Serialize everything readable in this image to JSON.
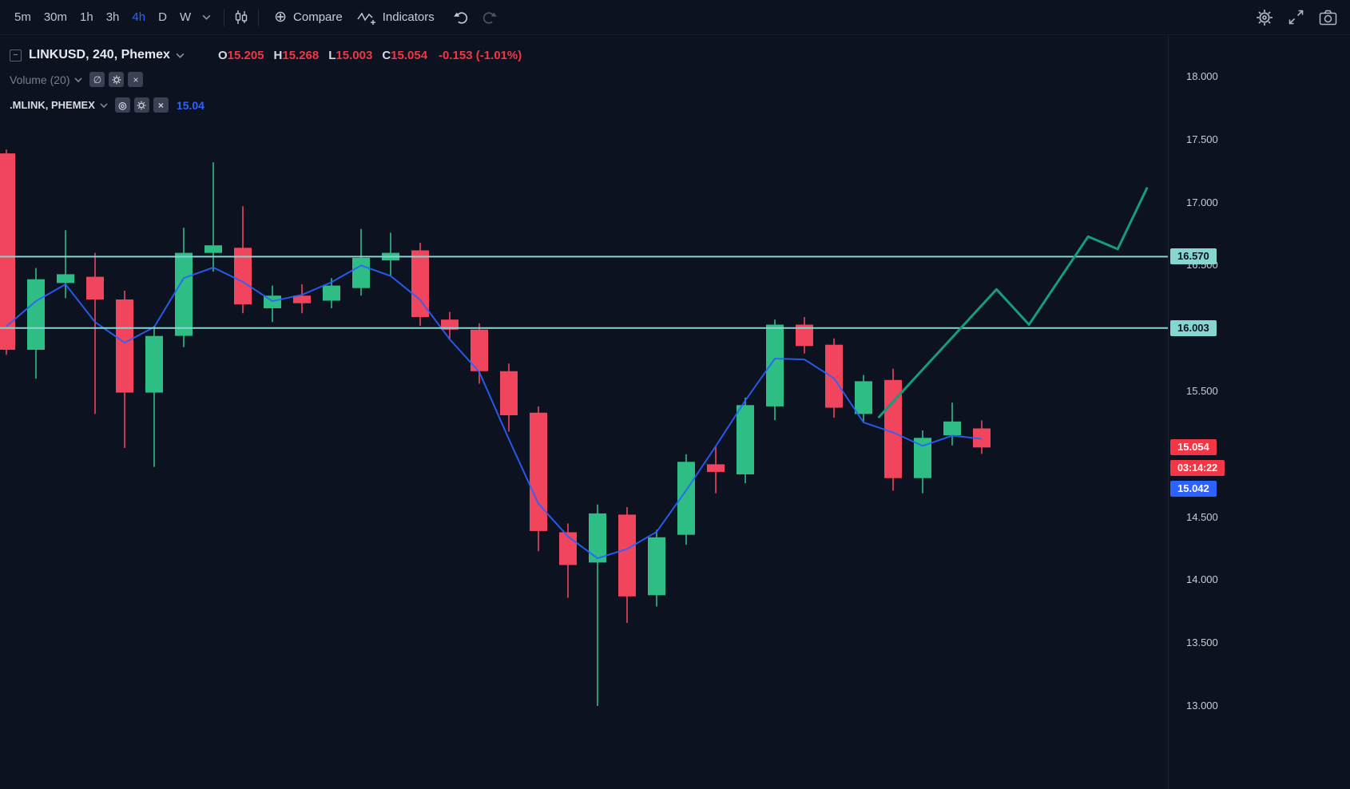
{
  "colors": {
    "bg": "#0d1220",
    "text": "#d1d4dc",
    "muted": "#787f90",
    "accent_blue": "#2d62ff",
    "red": "#f23645",
    "candle_up": "#2ebd85",
    "candle_down": "#f0455c",
    "level_teal": "#85d6d0",
    "drawn_line": "#169b7e",
    "index_line": "#2962ff"
  },
  "icons": {
    "collapse": "−",
    "circle_plus": "⊕",
    "hidden_eye": "∅",
    "eye": "◎",
    "close": "×"
  },
  "toolbar": {
    "timeframes": [
      {
        "label": "5m",
        "active": false
      },
      {
        "label": "30m",
        "active": false
      },
      {
        "label": "1h",
        "active": false
      },
      {
        "label": "3h",
        "active": false
      },
      {
        "label": "4h",
        "active": true
      },
      {
        "label": "D",
        "active": false
      },
      {
        "label": "W",
        "active": false
      }
    ],
    "compare_label": "Compare",
    "indicators_label": "Indicators"
  },
  "legend": {
    "symbol_title": "LINKUSD, 240, Phemex",
    "ohlc": {
      "open_label": "O",
      "open": "15.205",
      "high_label": "H",
      "high": "15.268",
      "low_label": "L",
      "low": "15.003",
      "close_label": "C",
      "close": "15.054",
      "change": "-0.153 (-1.01%)"
    },
    "volume_row": {
      "title": "Volume (20)"
    },
    "index_row": {
      "title": ".MLINK, PHEMEX",
      "value": "15.04"
    }
  },
  "price_axis": {
    "ticks": [
      "18.000",
      "17.500",
      "17.000",
      "16.500",
      "15.500",
      "14.500",
      "14.000",
      "13.500",
      "13.000"
    ],
    "levels": [
      "16.570",
      "16.003"
    ],
    "last_price": "15.054",
    "countdown": "03:14:22",
    "index_price": "15.042"
  },
  "chart_data": {
    "type": "candlestick",
    "symbol": "LINKUSD",
    "interval": "240",
    "exchange": "Phemex",
    "ylim": [
      13.0,
      18.0
    ],
    "grid": false,
    "levels": [
      16.57,
      16.003
    ],
    "last_bar": {
      "o": 15.205,
      "h": 15.268,
      "l": 15.003,
      "c": 15.054,
      "change": -0.153,
      "change_pct": -1.01
    },
    "index_value": 15.042,
    "candles": [
      {
        "o": 17.39,
        "h": 17.42,
        "l": 15.79,
        "c": 15.83
      },
      {
        "o": 15.83,
        "h": 16.48,
        "l": 15.6,
        "c": 16.39
      },
      {
        "o": 16.36,
        "h": 16.78,
        "l": 16.24,
        "c": 16.43
      },
      {
        "o": 16.41,
        "h": 16.6,
        "l": 15.32,
        "c": 16.23
      },
      {
        "o": 16.23,
        "h": 16.3,
        "l": 15.05,
        "c": 15.49
      },
      {
        "o": 15.49,
        "h": 16.02,
        "l": 14.9,
        "c": 15.94
      },
      {
        "o": 15.94,
        "h": 16.8,
        "l": 15.85,
        "c": 16.6
      },
      {
        "o": 16.6,
        "h": 17.32,
        "l": 16.45,
        "c": 16.66
      },
      {
        "o": 16.64,
        "h": 16.97,
        "l": 16.12,
        "c": 16.19
      },
      {
        "o": 16.16,
        "h": 16.34,
        "l": 16.05,
        "c": 16.26
      },
      {
        "o": 16.26,
        "h": 16.35,
        "l": 16.12,
        "c": 16.2
      },
      {
        "o": 16.22,
        "h": 16.4,
        "l": 16.16,
        "c": 16.34
      },
      {
        "o": 16.32,
        "h": 16.79,
        "l": 16.26,
        "c": 16.56
      },
      {
        "o": 16.54,
        "h": 16.76,
        "l": 16.42,
        "c": 16.6
      },
      {
        "o": 16.62,
        "h": 16.68,
        "l": 16.02,
        "c": 16.09
      },
      {
        "o": 16.07,
        "h": 16.13,
        "l": 15.92,
        "c": 15.99
      },
      {
        "o": 15.99,
        "h": 16.04,
        "l": 15.56,
        "c": 15.66
      },
      {
        "o": 15.66,
        "h": 15.72,
        "l": 15.18,
        "c": 15.31
      },
      {
        "o": 15.33,
        "h": 15.38,
        "l": 14.23,
        "c": 14.39
      },
      {
        "o": 14.38,
        "h": 14.45,
        "l": 13.86,
        "c": 14.12
      },
      {
        "o": 14.14,
        "h": 14.6,
        "l": 13.0,
        "c": 14.53
      },
      {
        "o": 14.52,
        "h": 14.58,
        "l": 13.66,
        "c": 13.87
      },
      {
        "o": 13.88,
        "h": 14.4,
        "l": 13.79,
        "c": 14.34
      },
      {
        "o": 14.36,
        "h": 15.0,
        "l": 14.28,
        "c": 14.94
      },
      {
        "o": 14.92,
        "h": 15.06,
        "l": 14.69,
        "c": 14.86
      },
      {
        "o": 14.84,
        "h": 15.45,
        "l": 14.77,
        "c": 15.39
      },
      {
        "o": 15.38,
        "h": 16.07,
        "l": 15.27,
        "c": 16.03
      },
      {
        "o": 16.03,
        "h": 16.09,
        "l": 15.8,
        "c": 15.86
      },
      {
        "o": 15.87,
        "h": 15.92,
        "l": 15.29,
        "c": 15.37
      },
      {
        "o": 15.32,
        "h": 15.63,
        "l": 15.26,
        "c": 15.58
      },
      {
        "o": 15.59,
        "h": 15.68,
        "l": 14.71,
        "c": 14.81
      },
      {
        "o": 14.81,
        "h": 15.19,
        "l": 14.69,
        "c": 15.13
      },
      {
        "o": 15.15,
        "h": 15.41,
        "l": 15.07,
        "c": 15.26
      },
      {
        "o": 15.205,
        "h": 15.268,
        "l": 15.003,
        "c": 15.054
      }
    ],
    "drawn_trendline": [
      {
        "bar": 29.5,
        "price": 15.29
      },
      {
        "bar": 33.5,
        "price": 16.31
      },
      {
        "bar": 34.6,
        "price": 16.03
      },
      {
        "bar": 36.6,
        "price": 16.73
      },
      {
        "bar": 37.6,
        "price": 16.63
      },
      {
        "bar": 38.6,
        "price": 17.12
      }
    ]
  }
}
